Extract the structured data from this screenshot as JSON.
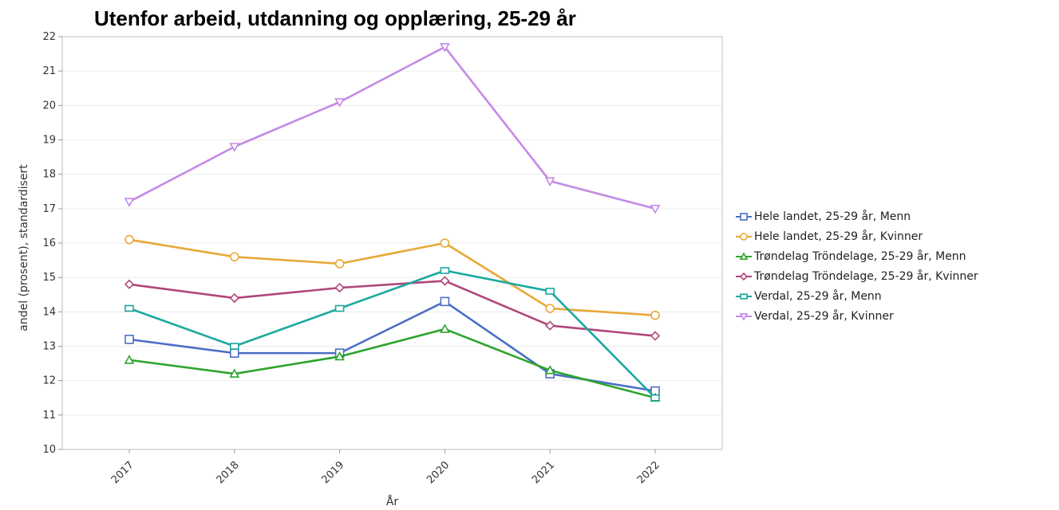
{
  "chart_data": {
    "type": "line",
    "title": "Utenfor arbeid, utdanning og opplæring, 25-29 år",
    "xlabel": "År",
    "ylabel": "andel (prosent), standardisert",
    "categories": [
      "2017",
      "2018",
      "2019",
      "2020",
      "2021",
      "2022"
    ],
    "ylim": [
      10,
      22
    ],
    "yticks": [
      10,
      11,
      12,
      13,
      14,
      15,
      16,
      17,
      18,
      19,
      20,
      21,
      22
    ],
    "grid": true,
    "legend_position": "right",
    "series": [
      {
        "name": "Hele landet, 25-29 år, Menn",
        "color": "#4a6fc4",
        "marker": "square",
        "values": [
          13.2,
          12.8,
          12.8,
          14.3,
          12.2,
          11.7
        ]
      },
      {
        "name": "Hele landet, 25-29 år, Kvinner",
        "color": "#e8a838",
        "marker": "circle",
        "values": [
          16.1,
          15.6,
          15.4,
          16.0,
          14.1,
          13.9
        ]
      },
      {
        "name": "Trøndelag Tröndelage, 25-29 år, Menn",
        "color": "#2ea42e",
        "marker": "triangle-up",
        "values": [
          12.6,
          12.2,
          12.7,
          13.5,
          12.3,
          11.5
        ]
      },
      {
        "name": "Trøndelag Tröndelage, 25-29 år, Kvinner",
        "color": "#b0467a",
        "marker": "diamond",
        "values": [
          14.8,
          14.4,
          14.7,
          14.9,
          13.6,
          13.3
        ]
      },
      {
        "name": "Verdal, 25-29 år, Menn",
        "color": "#1aa8a0",
        "marker": "rect",
        "values": [
          14.1,
          13.0,
          14.1,
          15.2,
          14.6,
          11.5
        ]
      },
      {
        "name": "Verdal, 25-29 år, Kvinner",
        "color": "#c48ae6",
        "marker": "triangle-down",
        "values": [
          17.2,
          18.8,
          20.1,
          21.7,
          17.8,
          17.0
        ]
      }
    ]
  }
}
